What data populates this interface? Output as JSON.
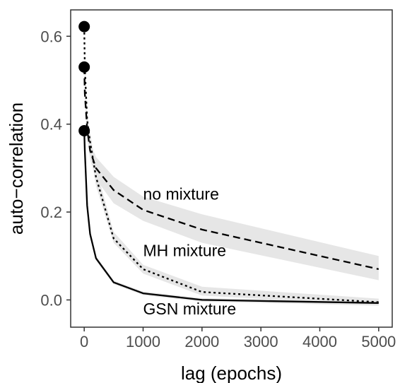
{
  "chart_data": {
    "type": "line",
    "title": "",
    "xlabel": "lag (epochs)",
    "ylabel": "auto−correlation",
    "xlim": [
      -230,
      5230
    ],
    "ylim": [
      -0.062,
      0.66
    ],
    "x_ticks": [
      0,
      1000,
      2000,
      3000,
      4000,
      5000
    ],
    "x_tick_labels": [
      "0",
      "1000",
      "2000",
      "3000",
      "4000",
      "5000"
    ],
    "y_ticks": [
      0.0,
      0.2,
      0.4,
      0.6
    ],
    "y_tick_labels": [
      "0.0",
      "0.2",
      "0.4",
      "0.6"
    ],
    "grid": false,
    "legend": "none (series labelled directly on the plot)",
    "series": [
      {
        "name": "no mixture",
        "line_style": "dashed",
        "x": [
          0,
          10,
          50,
          100,
          200,
          500,
          1000,
          2000,
          5000
        ],
        "y": [
          0.53,
          0.47,
          0.39,
          0.34,
          0.3,
          0.25,
          0.205,
          0.16,
          0.07
        ],
        "band_lower": [
          0.53,
          0.46,
          0.37,
          0.32,
          0.275,
          0.22,
          0.18,
          0.13,
          0.045
        ],
        "band_upper": [
          0.53,
          0.48,
          0.41,
          0.36,
          0.325,
          0.28,
          0.235,
          0.195,
          0.1
        ]
      },
      {
        "name": "MH mixture",
        "line_style": "dotted",
        "x": [
          0,
          10,
          50,
          100,
          200,
          500,
          1000,
          2000,
          5000
        ],
        "y": [
          0.62,
          0.53,
          0.41,
          0.36,
          0.28,
          0.14,
          0.07,
          0.018,
          -0.005
        ],
        "band_lower": [
          0.62,
          0.52,
          0.395,
          0.34,
          0.26,
          0.13,
          0.06,
          0.01,
          -0.012
        ],
        "band_upper": [
          0.62,
          0.54,
          0.425,
          0.38,
          0.3,
          0.155,
          0.08,
          0.03,
          0.003
        ]
      },
      {
        "name": "GSN mixture",
        "line_style": "solid",
        "x": [
          0,
          10,
          50,
          100,
          200,
          500,
          1000,
          2000,
          5000
        ],
        "y": [
          0.385,
          0.34,
          0.215,
          0.15,
          0.095,
          0.04,
          0.015,
          0.0,
          -0.007
        ],
        "band_lower": [
          0.385,
          0.33,
          0.205,
          0.143,
          0.09,
          0.036,
          0.011,
          -0.004,
          -0.013
        ],
        "band_upper": [
          0.385,
          0.35,
          0.225,
          0.157,
          0.1,
          0.044,
          0.019,
          0.004,
          -0.001
        ]
      }
    ],
    "markers": [
      {
        "x": 0,
        "y": 0.622
      },
      {
        "x": 0,
        "y": 0.53
      },
      {
        "x": 0,
        "y": 0.385
      }
    ],
    "annotations": [
      {
        "text": "no mixture",
        "x": 1000,
        "y": 0.228
      },
      {
        "text": "MH mixture",
        "x": 1000,
        "y": 0.1
      },
      {
        "text": "GSN mixture",
        "x": 1000,
        "y": -0.033
      }
    ],
    "colors": {
      "line": "#000000",
      "band": "#e6e6e6",
      "panel_border": "#333333",
      "tick_text": "#4d4d4d"
    }
  }
}
